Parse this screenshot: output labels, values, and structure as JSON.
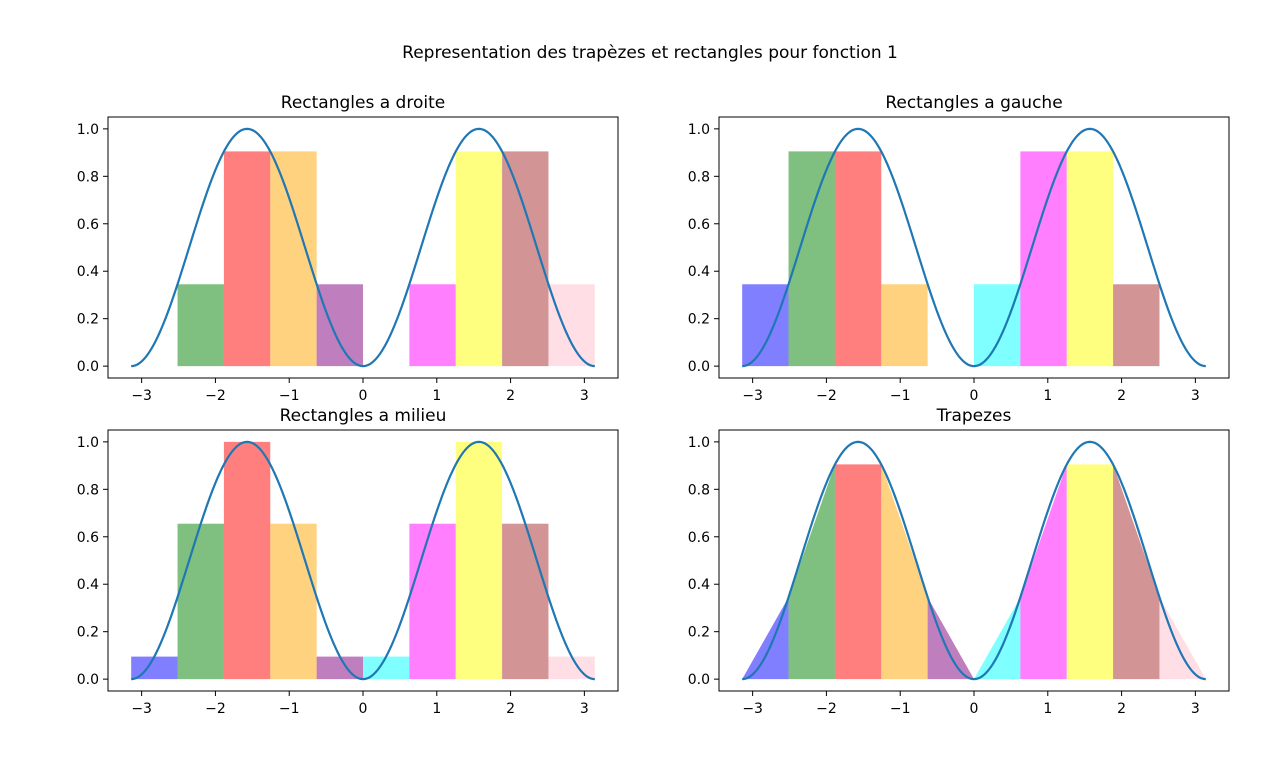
{
  "figure": {
    "title": "Representation des trapèzes et rectangles pour fonction 1",
    "curve_color": "#1f77b4",
    "bar_colors": [
      "#0000ff",
      "#008000",
      "#ff0000",
      "#ffa500",
      "#800080",
      "#00ffff",
      "#ff00ff",
      "#ffff00",
      "#a52a2a",
      "#ffc0cb"
    ],
    "bar_opacity": 0.5
  },
  "chart_data": [
    {
      "type": "bar",
      "title": "Rectangles a droite",
      "method": "right",
      "xlim": [
        -3.4558,
        3.4558
      ],
      "ylim": [
        -0.05,
        1.05
      ],
      "xticks": [
        "−3",
        "−2",
        "−1",
        "0",
        "1",
        "2",
        "3"
      ],
      "xtick_values": [
        -3,
        -2,
        -1,
        0,
        1,
        2,
        3
      ],
      "yticks": [
        "0.0",
        "0.2",
        "0.4",
        "0.6",
        "0.8",
        "1.0"
      ],
      "ytick_values": [
        0,
        0.2,
        0.4,
        0.6,
        0.8,
        1.0
      ],
      "bar_edges": [
        -3.1416,
        -2.5133,
        -1.885,
        -1.2566,
        -0.6283,
        0,
        0.6283,
        1.2566,
        1.885,
        2.5133,
        3.1416
      ],
      "values": [
        0,
        0.345,
        0.905,
        0.905,
        0.345,
        0,
        0.345,
        0.905,
        0.905,
        0.345
      ],
      "curve": "sin(x)^2"
    },
    {
      "type": "bar",
      "title": "Rectangles a gauche",
      "method": "left",
      "xlim": [
        -3.4558,
        3.4558
      ],
      "ylim": [
        -0.05,
        1.05
      ],
      "xticks": [
        "−3",
        "−2",
        "−1",
        "0",
        "1",
        "2",
        "3"
      ],
      "xtick_values": [
        -3,
        -2,
        -1,
        0,
        1,
        2,
        3
      ],
      "yticks": [
        "0.0",
        "0.2",
        "0.4",
        "0.6",
        "0.8",
        "1.0"
      ],
      "ytick_values": [
        0,
        0.2,
        0.4,
        0.6,
        0.8,
        1.0
      ],
      "bar_edges": [
        -3.1416,
        -2.5133,
        -1.885,
        -1.2566,
        -0.6283,
        0,
        0.6283,
        1.2566,
        1.885,
        2.5133,
        3.1416
      ],
      "values": [
        0.345,
        0.905,
        0.905,
        0.345,
        0,
        0.345,
        0.905,
        0.905,
        0.345,
        0
      ],
      "curve": "sin(x)^2"
    },
    {
      "type": "bar",
      "title": "Rectangles a milieu",
      "method": "middle",
      "xlim": [
        -3.4558,
        3.4558
      ],
      "ylim": [
        -0.05,
        1.05
      ],
      "xticks": [
        "−3",
        "−2",
        "−1",
        "0",
        "1",
        "2",
        "3"
      ],
      "xtick_values": [
        -3,
        -2,
        -1,
        0,
        1,
        2,
        3
      ],
      "yticks": [
        "0.0",
        "0.2",
        "0.4",
        "0.6",
        "0.8",
        "1.0"
      ],
      "ytick_values": [
        0,
        0.2,
        0.4,
        0.6,
        0.8,
        1.0
      ],
      "bar_edges": [
        -3.1416,
        -2.5133,
        -1.885,
        -1.2566,
        -0.6283,
        0,
        0.6283,
        1.2566,
        1.885,
        2.5133,
        3.1416
      ],
      "values": [
        0.095,
        0.655,
        1.0,
        0.655,
        0.095,
        0.095,
        0.655,
        1.0,
        0.655,
        0.095
      ],
      "curve": "sin(x)^2"
    },
    {
      "type": "area",
      "title": "Trapezes",
      "method": "trapezoid",
      "xlim": [
        -3.4558,
        3.4558
      ],
      "ylim": [
        -0.05,
        1.05
      ],
      "xticks": [
        "−3",
        "−2",
        "−1",
        "0",
        "1",
        "2",
        "3"
      ],
      "xtick_values": [
        -3,
        -2,
        -1,
        0,
        1,
        2,
        3
      ],
      "yticks": [
        "0.0",
        "0.2",
        "0.4",
        "0.6",
        "0.8",
        "1.0"
      ],
      "ytick_values": [
        0,
        0.2,
        0.4,
        0.6,
        0.8,
        1.0
      ],
      "nodes_x": [
        -3.1416,
        -2.5133,
        -1.885,
        -1.2566,
        -0.6283,
        0,
        0.6283,
        1.2566,
        1.885,
        2.5133,
        3.1416
      ],
      "nodes_y": [
        0,
        0.345,
        0.905,
        0.905,
        0.345,
        0,
        0.345,
        0.905,
        0.905,
        0.345,
        0
      ],
      "curve": "sin(x)^2"
    }
  ]
}
